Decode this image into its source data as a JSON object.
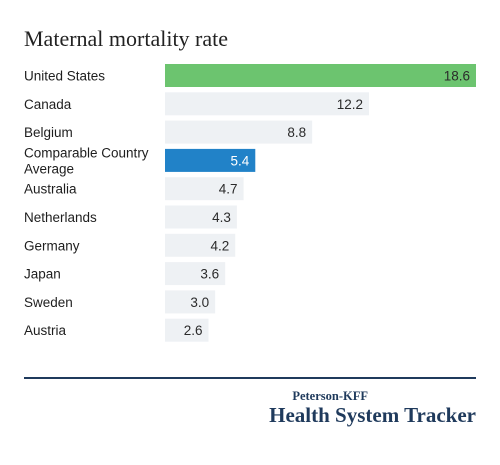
{
  "chart_data": {
    "type": "bar",
    "orientation": "horizontal",
    "title": "Maternal mortality rate",
    "categories": [
      "United States",
      "Canada",
      "Belgium",
      "Comparable Country Average",
      "Australia",
      "Netherlands",
      "Germany",
      "Japan",
      "Sweden",
      "Austria"
    ],
    "category_lines": [
      [
        "United States"
      ],
      [
        "Canada"
      ],
      [
        "Belgium"
      ],
      [
        "Comparable Country",
        "Average"
      ],
      [
        "Australia"
      ],
      [
        "Netherlands"
      ],
      [
        "Germany"
      ],
      [
        "Japan"
      ],
      [
        "Sweden"
      ],
      [
        "Austria"
      ]
    ],
    "values": [
      18.6,
      12.2,
      8.8,
      5.4,
      4.7,
      4.3,
      4.2,
      3.6,
      3.0,
      2.6
    ],
    "value_labels": [
      "18.6",
      "12.2",
      "8.8",
      "5.4",
      "4.7",
      "4.3",
      "4.2",
      "3.6",
      "3.0",
      "2.6"
    ],
    "xlim": [
      0,
      18.6
    ],
    "grid": false,
    "colors": {
      "highlight_us": "#6cc46f",
      "highlight_average": "#2182c8",
      "default_bar": "#eef1f4",
      "default_label": "#2b2b2b",
      "highlight_label": "#ffffff"
    }
  },
  "branding": {
    "line1": "Peterson-KFF",
    "line2": "Health System Tracker"
  }
}
